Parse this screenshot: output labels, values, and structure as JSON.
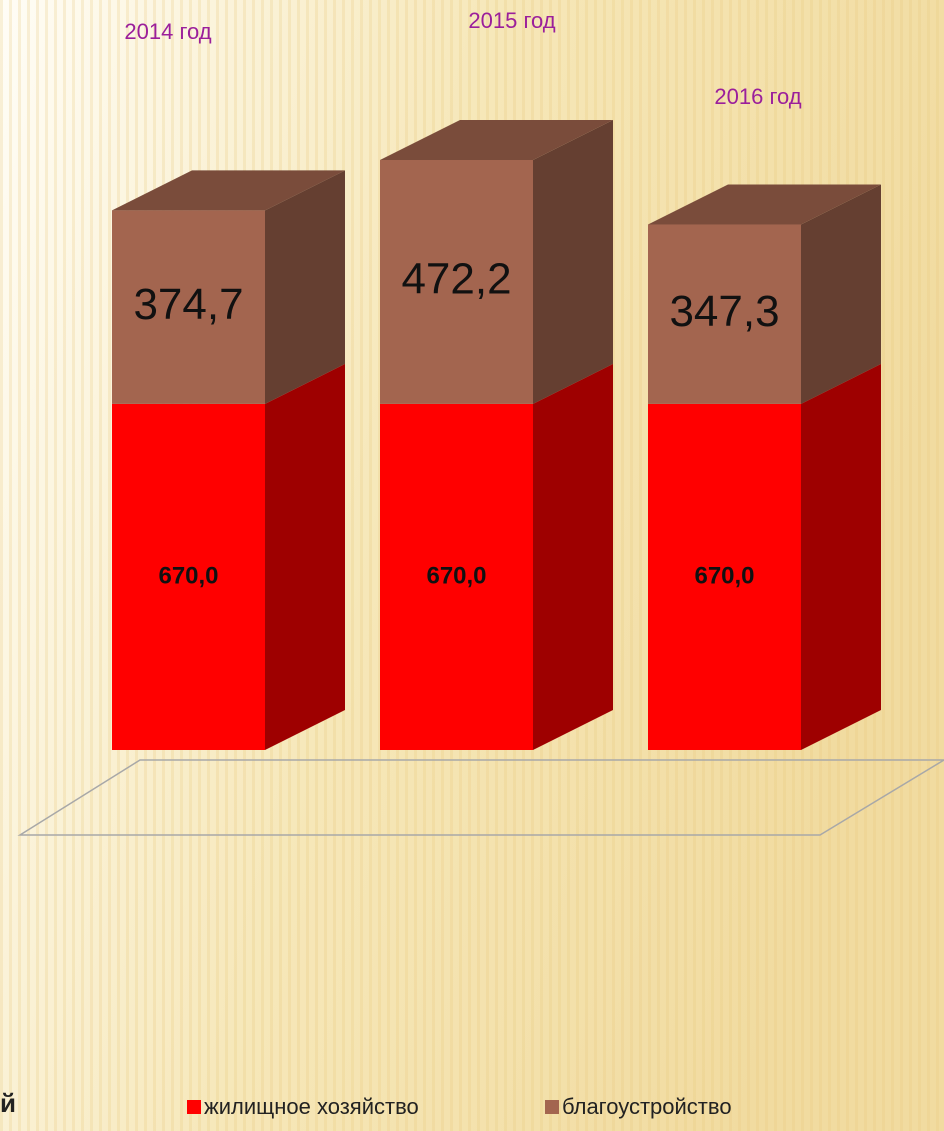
{
  "chart_data": {
    "type": "bar3d_stacked",
    "categories": [
      "2014 год",
      "2015 год",
      "2016 год"
    ],
    "series": [
      {
        "name": "жилищное хозяйство",
        "color": "#ff0000",
        "values": [
          670.0,
          670.0,
          670.0
        ],
        "value_labels": [
          "670,0",
          "670,0",
          "670,0"
        ]
      },
      {
        "name": "благоустройство",
        "color": "#a3654f",
        "values": [
          374.7,
          472.2,
          347.3
        ],
        "value_labels": [
          "374,7",
          "472,2",
          "347,3"
        ]
      }
    ],
    "legend": "bottom",
    "annotation": "й"
  }
}
